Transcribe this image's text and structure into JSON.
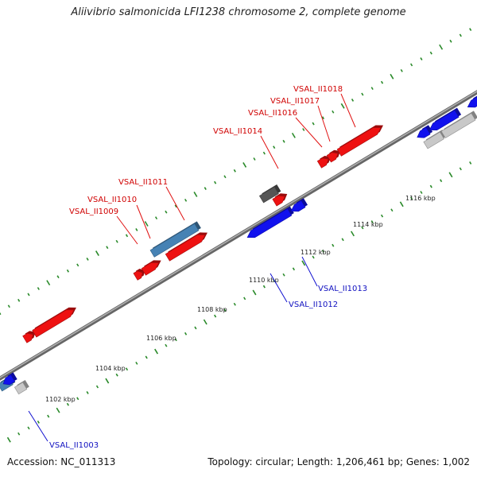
{
  "title": "Aliivibrio salmonicida LFI1238 chromosome 2, complete genome",
  "footer": {
    "accession": "Accession: NC_011313",
    "summary": "Topology: circular; Length: 1,206,461 bp; Genes: 1,002"
  },
  "colors": {
    "forward_cds": "#ee1111",
    "reverse_cds": "#1111ee",
    "forward_other": "#4682b4",
    "rna": "#555555",
    "other": "#c8c8c8",
    "backbone": "#888888",
    "tick": "#2a8a2a"
  },
  "scale": {
    "labels": [
      "1102 kbp",
      "1104 kbp",
      "1106 kbp",
      "1108 kbp",
      "1110 kbp",
      "1112 kbp",
      "1114 kbp",
      "1116 kbp"
    ]
  },
  "labels": {
    "forward": [
      "VSAL_II1009",
      "VSAL_II1010",
      "VSAL_II1011",
      "VSAL_II1014",
      "VSAL_II1016",
      "VSAL_II1017",
      "VSAL_II1018"
    ],
    "reverse": [
      "VSAL_II1003",
      "VSAL_II1012",
      "VSAL_II1013"
    ]
  }
}
